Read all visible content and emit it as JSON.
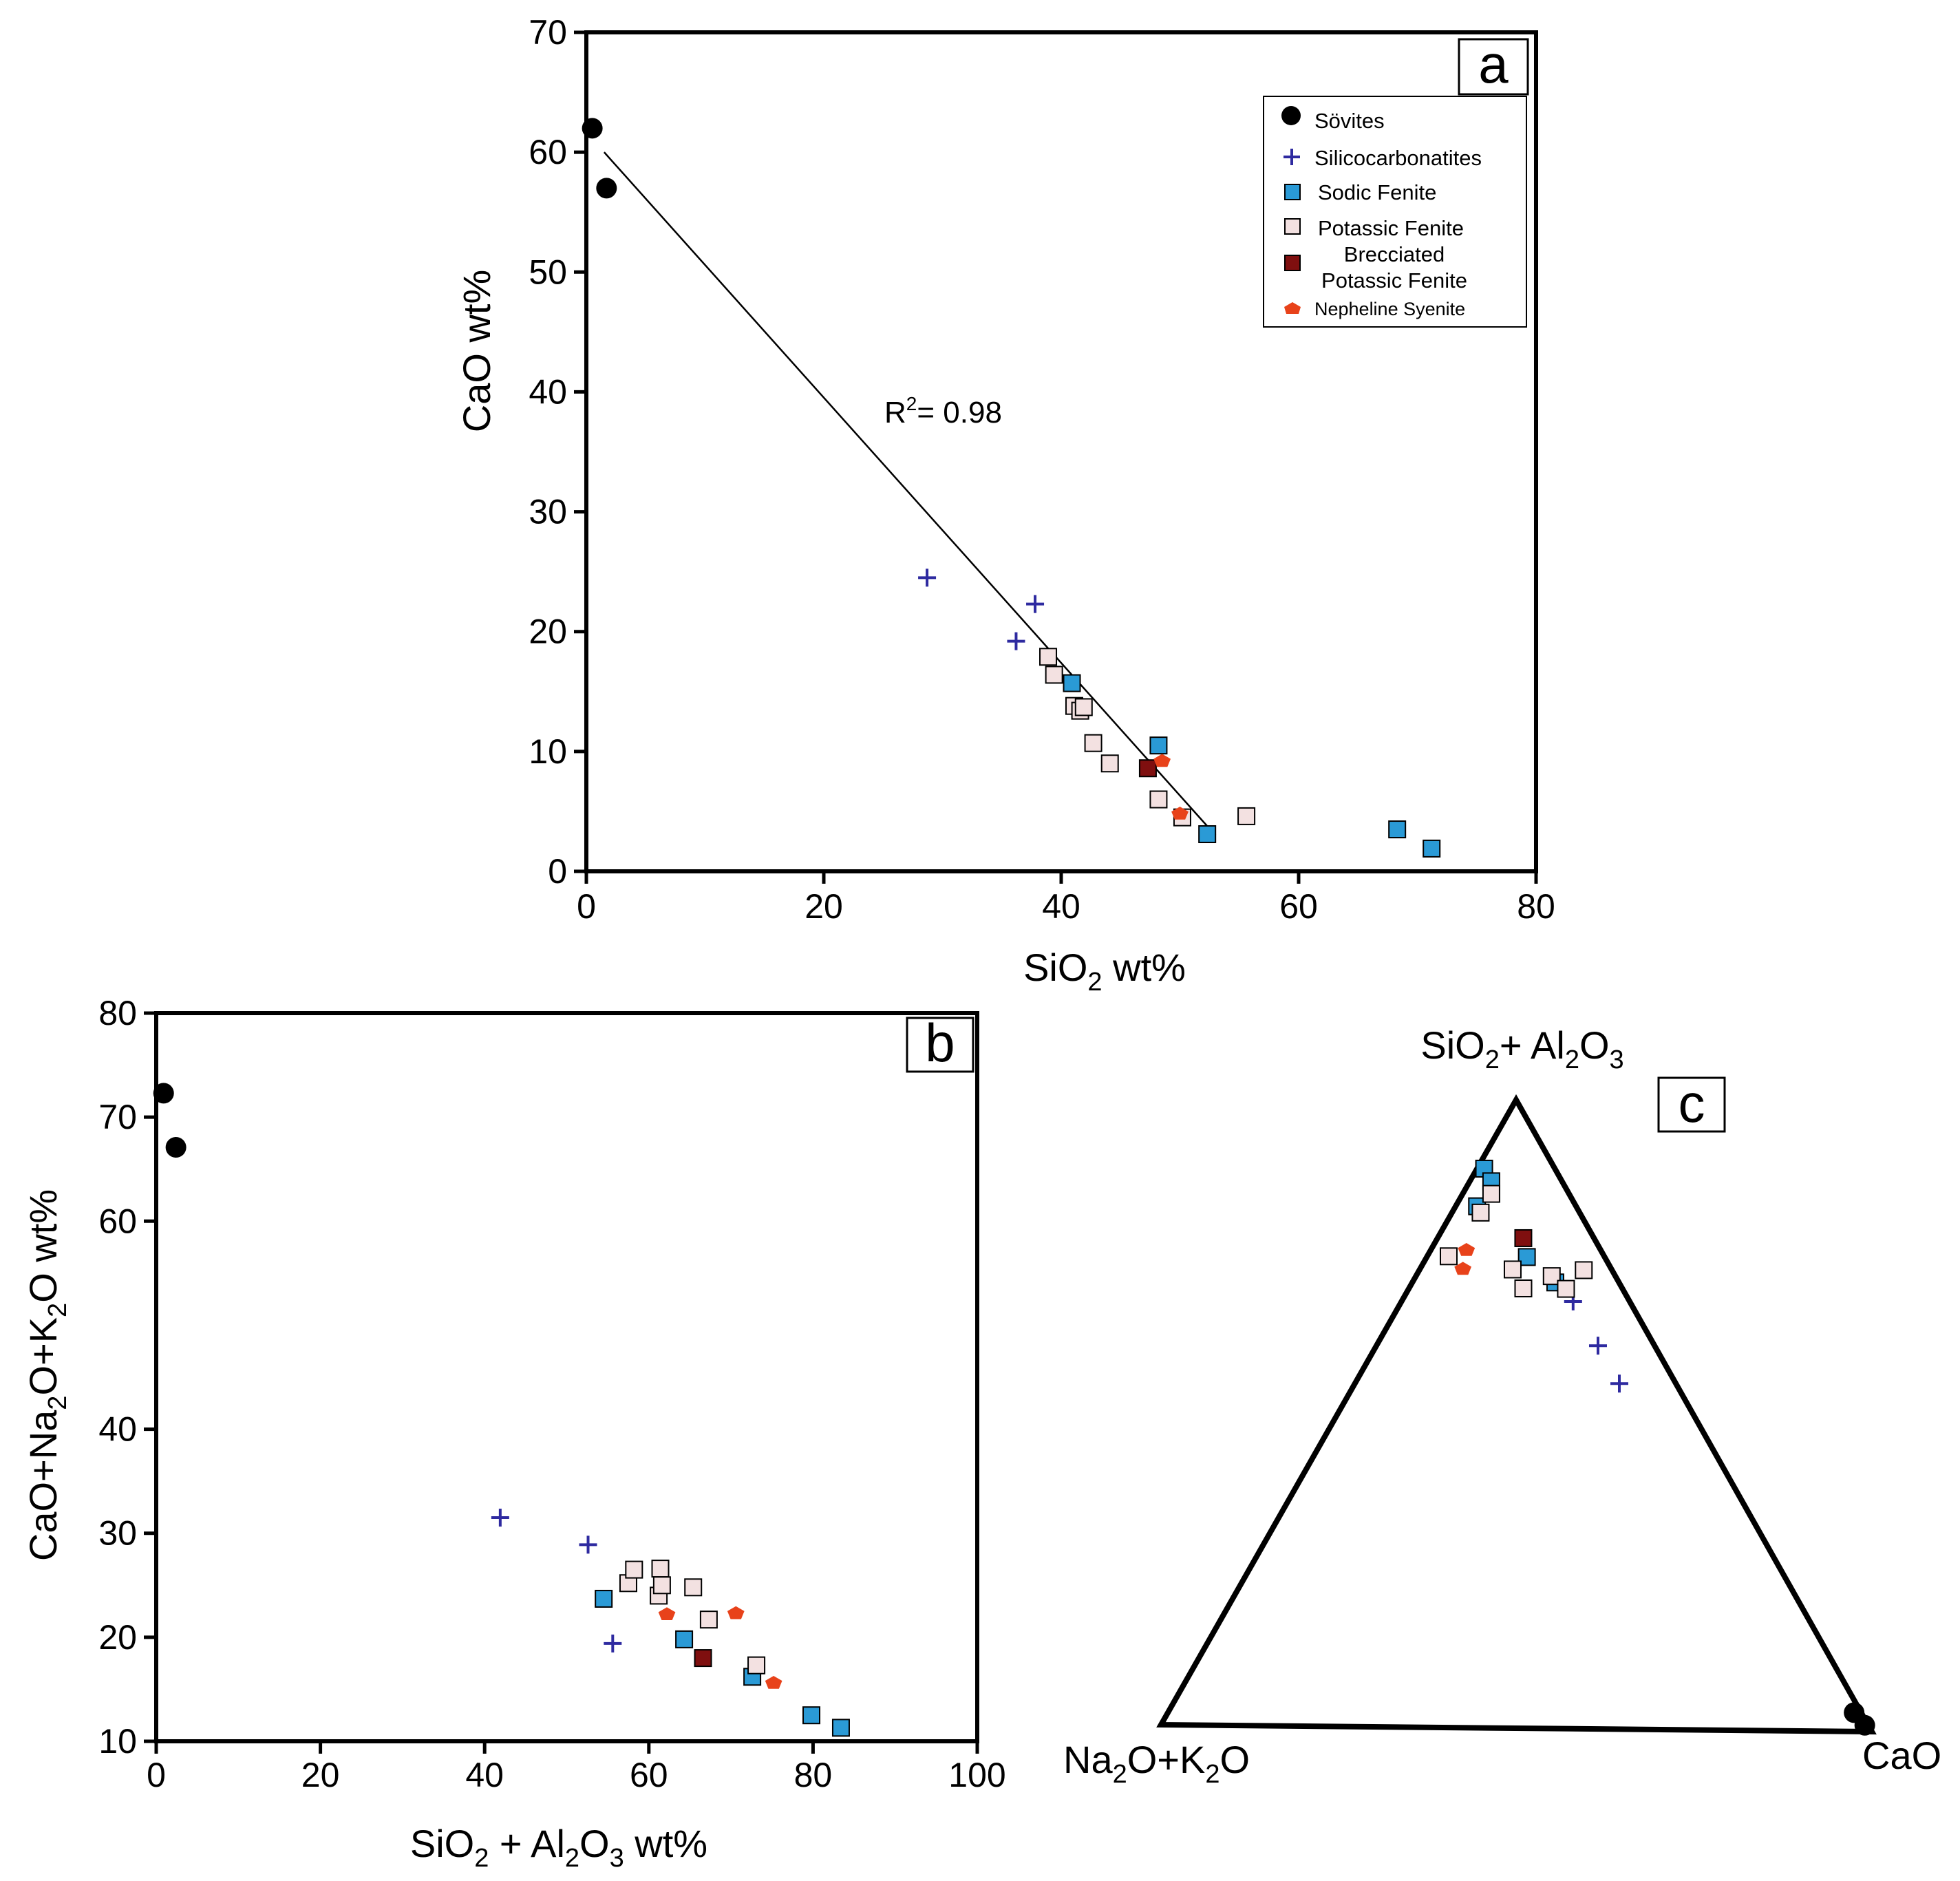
{
  "colors": {
    "sovites": "#000000",
    "silicocarbonatites": "#2e2aa0",
    "sodic_fenite": "#2a9ad6",
    "potassic_fenite": "#f3e1e1",
    "brecciated_potassic_fenite": "#7f0f0f",
    "nepheline_syenite": "#e8421a"
  },
  "legend": {
    "sovites": "Sövites",
    "silicocarbonatites": "Silicocarbonatites",
    "sodic_fenite": "Sodic Fenite",
    "potassic_fenite": "Potassic Fenite",
    "brecciated_line1": "Brecciated",
    "brecciated_line2": "Potassic Fenite",
    "nepheline_syenite": "Nepheline Syenite"
  },
  "chart_data": [
    {
      "panel": "a",
      "type": "scatter",
      "xlabel": "SiO2 wt%",
      "ylabel": "CaO wt%",
      "xlim": [
        0,
        80
      ],
      "ylim": [
        0,
        70
      ],
      "xticks": [
        "0",
        "20",
        "40",
        "60",
        "80"
      ],
      "yticks": [
        "0",
        "10",
        "20",
        "30",
        "40",
        "50",
        "60",
        "70"
      ],
      "annotation": "R2= 0.98",
      "trendline": {
        "x": [
          1.5,
          53
        ],
        "y": [
          60,
          3
        ]
      },
      "series": [
        {
          "name": "Sövites",
          "marker": "circle",
          "points": [
            [
              0.5,
              62
            ],
            [
              1.7,
              57
            ]
          ]
        },
        {
          "name": "Silicocarbonatites",
          "marker": "plus",
          "points": [
            [
              28.7,
              24.5
            ],
            [
              36.2,
              19.2
            ],
            [
              37.8,
              22.3
            ]
          ]
        },
        {
          "name": "Sodic Fenite",
          "marker": "square",
          "points": [
            [
              40.9,
              15.7
            ],
            [
              48.2,
              10.5
            ],
            [
              52.3,
              3.1
            ],
            [
              68.3,
              3.5
            ],
            [
              71.2,
              1.9
            ]
          ]
        },
        {
          "name": "Potassic Fenite",
          "marker": "square",
          "points": [
            [
              38.9,
              17.9
            ],
            [
              39.4,
              16.4
            ],
            [
              41.1,
              13.8
            ],
            [
              41.6,
              13.4
            ],
            [
              41.9,
              13.7
            ],
            [
              42.7,
              10.7
            ],
            [
              44.1,
              9.0
            ],
            [
              48.2,
              6.0
            ],
            [
              50.2,
              4.5
            ],
            [
              55.6,
              4.6
            ]
          ]
        },
        {
          "name": "Brecciated Potassic Fenite",
          "marker": "square",
          "points": [
            [
              47.3,
              8.6
            ]
          ]
        },
        {
          "name": "Nepheline Syenite",
          "marker": "pentagon",
          "points": [
            [
              48.5,
              9.2
            ],
            [
              50.0,
              4.8
            ]
          ]
        }
      ]
    },
    {
      "panel": "b",
      "type": "scatter",
      "xlabel": "SiO2 + Al2O3 wt%",
      "ylabel": "CaO+Na2O+K2O wt%",
      "xlim": [
        0,
        100
      ],
      "ylim": [
        10,
        80
      ],
      "xticks": [
        "0",
        "20",
        "40",
        "60",
        "80",
        "100"
      ],
      "yticks": [
        "10",
        "20",
        "30",
        "40",
        "60",
        "70",
        "80"
      ],
      "series": [
        {
          "name": "Sövites",
          "marker": "circle",
          "points": [
            [
              0.9,
              72.3
            ],
            [
              2.4,
              67.1
            ]
          ]
        },
        {
          "name": "Silicocarbonatites",
          "marker": "plus",
          "points": [
            [
              41.9,
              31.5
            ],
            [
              52.6,
              28.9
            ],
            [
              55.6,
              19.4
            ]
          ]
        },
        {
          "name": "Sodic Fenite",
          "marker": "square",
          "points": [
            [
              54.5,
              23.7
            ],
            [
              64.3,
              19.8
            ],
            [
              72.6,
              16.2
            ],
            [
              79.8,
              12.5
            ],
            [
              83.4,
              11.3
            ]
          ]
        },
        {
          "name": "Potassic Fenite",
          "marker": "square",
          "points": [
            [
              57.5,
              25.2
            ],
            [
              58.2,
              26.5
            ],
            [
              61.2,
              24.0
            ],
            [
              61.4,
              26.6
            ],
            [
              61.6,
              25.0
            ],
            [
              65.4,
              24.8
            ],
            [
              67.3,
              21.7
            ],
            [
              73.1,
              17.3
            ]
          ]
        },
        {
          "name": "Brecciated Potassic Fenite",
          "marker": "square",
          "points": [
            [
              66.6,
              18.0
            ]
          ]
        },
        {
          "name": "Nepheline Syenite",
          "marker": "pentagon",
          "points": [
            [
              62.2,
              22.2
            ],
            [
              70.6,
              22.3
            ],
            [
              75.2,
              15.6
            ]
          ]
        }
      ]
    },
    {
      "panel": "c",
      "type": "ternary",
      "apex_top": "SiO2+ Al2O3",
      "apex_left": "Na2O+K2O",
      "apex_right": "CaO",
      "note": "values read from the diagram as fractions [top, right, left]",
      "series": [
        {
          "name": "Sövites",
          "marker": "circle",
          "points": [
            [
              0.03,
              0.96,
              0.01
            ],
            [
              0.01,
              0.985,
              0.005
            ]
          ]
        },
        {
          "name": "Silicocarbonatites",
          "marker": "plus",
          "points": [
            [
              0.68,
              0.24,
              0.08
            ],
            [
              0.61,
              0.31,
              0.08
            ],
            [
              0.55,
              0.37,
              0.08
            ]
          ]
        },
        {
          "name": "Sodic Fenite",
          "marker": "square",
          "points": [
            [
              0.89,
              0.01,
              0.1
            ],
            [
              0.87,
              0.03,
              0.1
            ],
            [
              0.83,
              0.03,
              0.14
            ],
            [
              0.75,
              0.14,
              0.11
            ],
            [
              0.71,
              0.2,
              0.09
            ]
          ]
        },
        {
          "name": "Potassic Fenite",
          "marker": "square",
          "points": [
            [
              0.85,
              0.04,
              0.11
            ],
            [
              0.82,
              0.04,
              0.14
            ],
            [
              0.75,
              0.03,
              0.22
            ],
            [
              0.73,
              0.13,
              0.14
            ],
            [
              0.72,
              0.19,
              0.09
            ],
            [
              0.7,
              0.16,
              0.14
            ],
            [
              0.7,
              0.22,
              0.08
            ],
            [
              0.73,
              0.23,
              0.04
            ]
          ]
        },
        {
          "name": "Brecciated Potassic Fenite",
          "marker": "square",
          "points": [
            [
              0.78,
              0.12,
              0.1
            ]
          ]
        },
        {
          "name": "Nepheline Syenite",
          "marker": "pentagon",
          "points": [
            [
              0.76,
              0.05,
              0.19
            ],
            [
              0.73,
              0.06,
              0.21
            ]
          ]
        }
      ]
    }
  ]
}
